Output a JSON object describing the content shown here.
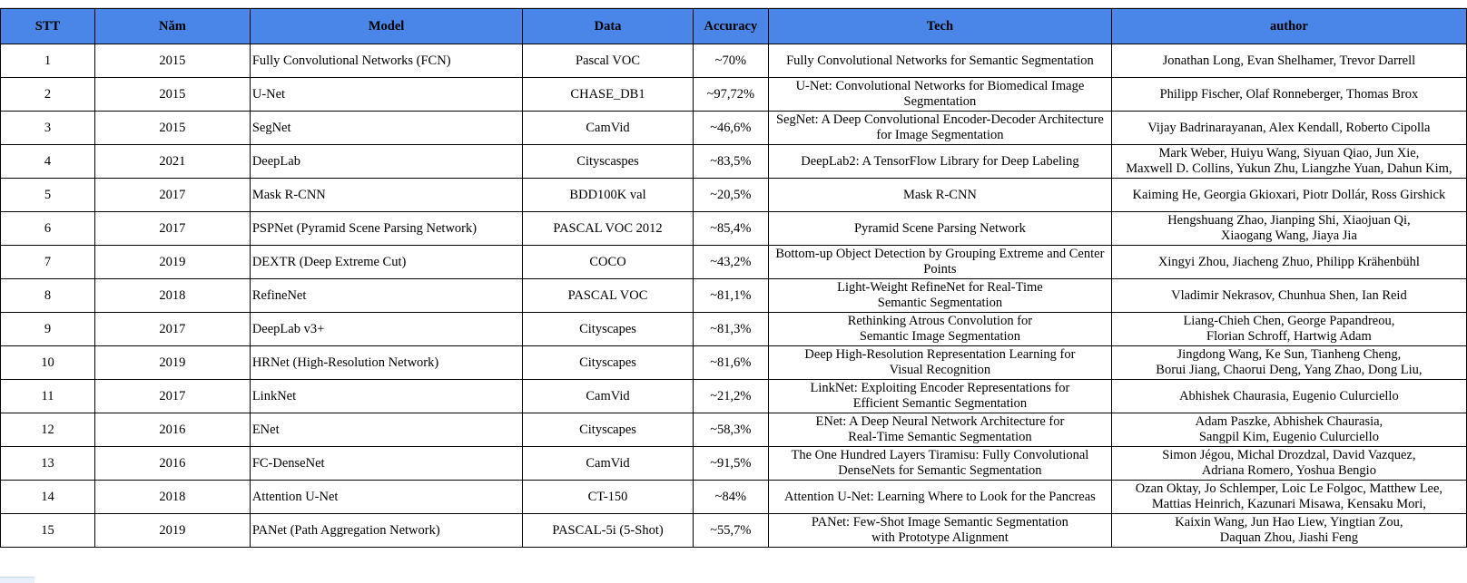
{
  "table": {
    "headers": [
      "STT",
      "Năm",
      "Model",
      "Data",
      "Accuracy",
      "Tech",
      "author"
    ],
    "rows": [
      {
        "stt": "1",
        "year": "2015",
        "model": "Fully Convolutional Networks (FCN)",
        "data": "Pascal VOC",
        "accuracy": "~70%",
        "tech": "Fully Convolutional Networks for Semantic Segmentation",
        "author": "Jonathan Long, Evan Shelhamer, Trevor Darrell"
      },
      {
        "stt": "2",
        "year": "2015",
        "model": "U-Net",
        "data": "CHASE_DB1",
        "accuracy": "~97,72%",
        "tech": "U-Net: Convolutional Networks for Biomedical Image Segmentation",
        "author": "Philipp Fischer, Olaf Ronneberger, Thomas Brox"
      },
      {
        "stt": "3",
        "year": "2015",
        "model": "SegNet",
        "data": "CamVid",
        "accuracy": "~46,6%",
        "tech": "SegNet: A Deep Convolutional Encoder-Decoder Architecture for Image Segmentation",
        "author": "Vijay Badrinarayanan, Alex Kendall, Roberto Cipolla"
      },
      {
        "stt": "4",
        "year": "2021",
        "model": "DeepLab",
        "data": "Cityscaspes",
        "accuracy": "~83,5%",
        "tech": "DeepLab2: A TensorFlow Library for Deep Labeling",
        "author": "Mark Weber, Huiyu Wang, Siyuan Qiao, Jun Xie,\nMaxwell D. Collins, Yukun Zhu, Liangzhe Yuan, Dahun Kim,"
      },
      {
        "stt": "5",
        "year": "2017",
        "model": "Mask R-CNN",
        "data": "BDD100K val",
        "accuracy": "~20,5%",
        "tech": "Mask R-CNN",
        "author": "Kaiming He, Georgia Gkioxari, Piotr Dollár, Ross Girshick"
      },
      {
        "stt": "6",
        "year": "2017",
        "model": "PSPNet (Pyramid Scene Parsing Network)",
        "data": "PASCAL VOC 2012",
        "accuracy": "~85,4%",
        "tech": "Pyramid Scene Parsing Network",
        "author": "Hengshuang Zhao, Jianping Shi, Xiaojuan Qi,\nXiaogang Wang, Jiaya Jia"
      },
      {
        "stt": "7",
        "year": "2019",
        "model": "DEXTR (Deep Extreme Cut)",
        "data": "COCO",
        "accuracy": "~43,2%",
        "tech": "Bottom-up Object Detection by Grouping Extreme and Center Points",
        "author": "Xingyi Zhou, Jiacheng Zhuo, Philipp Krähenbühl"
      },
      {
        "stt": "8",
        "year": "2018",
        "model": "RefineNet",
        "data": "PASCAL VOC",
        "accuracy": "~81,1%",
        "tech": "Light-Weight RefineNet for Real-Time\nSemantic Segmentation",
        "author": "Vladimir Nekrasov, Chunhua Shen, Ian Reid"
      },
      {
        "stt": "9",
        "year": "2017",
        "model": "DeepLab v3+",
        "data": "Cityscapes",
        "accuracy": "~81,3%",
        "tech": "Rethinking Atrous Convolution for\nSemantic Image Segmentation",
        "author": "Liang-Chieh Chen, George Papandreou,\nFlorian Schroff, Hartwig Adam"
      },
      {
        "stt": "10",
        "year": "2019",
        "model": "HRNet (High-Resolution Network)",
        "data": "Cityscapes",
        "accuracy": "~81,6%",
        "tech": "Deep High-Resolution Representation Learning for\nVisual Recognition",
        "author": "Jingdong Wang, Ke Sun, Tianheng Cheng,\nBorui Jiang, Chaorui Deng, Yang Zhao, Dong Liu,"
      },
      {
        "stt": "11",
        "year": "2017",
        "model": "LinkNet",
        "data": "CamVid",
        "accuracy": "~21,2%",
        "tech": "LinkNet: Exploiting Encoder Representations for\nEfficient Semantic Segmentation",
        "author": "Abhishek Chaurasia, Eugenio Culurciello"
      },
      {
        "stt": "12",
        "year": "2016",
        "model": "ENet",
        "data": "Cityscapes",
        "accuracy": "~58,3%",
        "tech": "ENet: A Deep Neural Network Architecture for\nReal-Time Semantic Segmentation",
        "author": "Adam Paszke, Abhishek Chaurasia,\nSangpil Kim, Eugenio Culurciello"
      },
      {
        "stt": "13",
        "year": "2016",
        "model": "FC-DenseNet",
        "data": "CamVid",
        "accuracy": "~91,5%",
        "tech": "The One Hundred Layers Tiramisu: Fully Convolutional\nDenseNets for Semantic Segmentation",
        "author": "Simon Jégou, Michal Drozdzal, David Vazquez,\nAdriana Romero, Yoshua Bengio"
      },
      {
        "stt": "14",
        "year": "2018",
        "model": "Attention U-Net",
        "data": "CT-150",
        "accuracy": "~84%",
        "tech": "Attention U-Net: Learning Where to Look for the Pancreas",
        "author": "Ozan Oktay, Jo Schlemper, Loic Le Folgoc, Matthew Lee,\nMattias Heinrich, Kazunari Misawa, Kensaku Mori,"
      },
      {
        "stt": "15",
        "year": "2019",
        "model": "PANet (Path Aggregation Network)",
        "data": "PASCAL-5i (5-Shot)",
        "accuracy": "~55,7%",
        "tech": "PANet: Few-Shot Image Semantic Segmentation\nwith Prototype Alignment",
        "author": "Kaixin Wang, Jun Hao Liew, Yingtian Zou,\nDaquan Zhou, Jiashi Feng"
      }
    ]
  }
}
